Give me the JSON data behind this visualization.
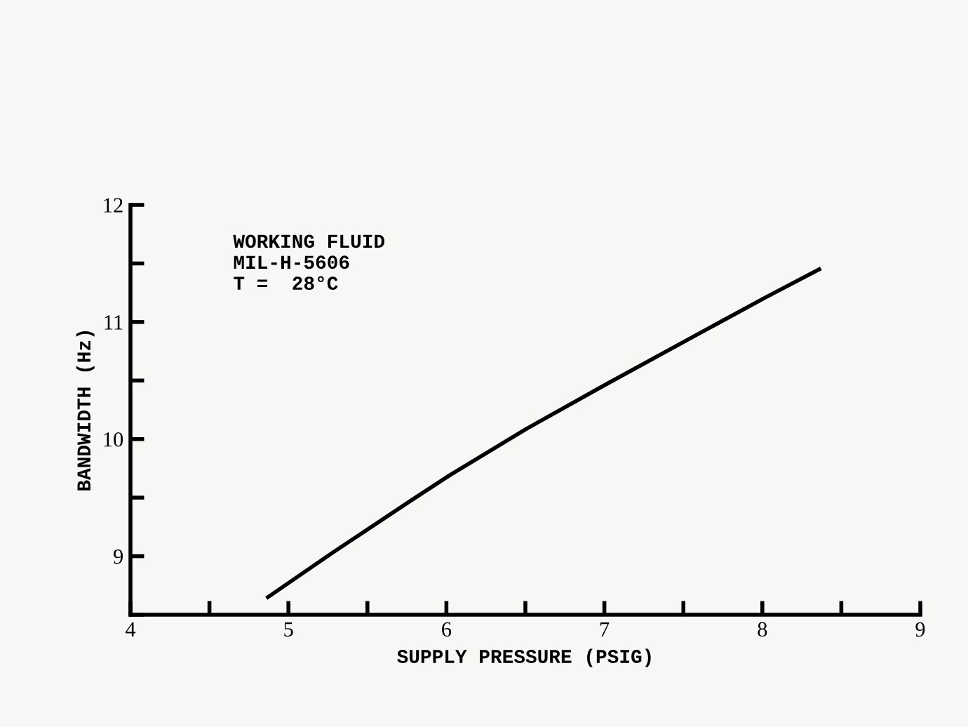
{
  "chart_data": {
    "type": "line",
    "xlabel": "SUPPLY PRESSURE (PSIG)",
    "ylabel": "BANDWIDTH (Hz)",
    "annotations": [
      "WORKING FLUID\nMIL-H-5606\nT =  28°C"
    ],
    "series": [
      {
        "color": "#000000",
        "x": [
          4.87,
          5.28,
          5.77,
          6.02,
          6.51,
          7.0,
          7.57,
          8.02,
          8.36
        ],
        "values": [
          8.65,
          9.03,
          9.47,
          9.69,
          10.09,
          10.46,
          10.88,
          11.21,
          11.45
        ]
      }
    ],
    "xlim": [
      4,
      9
    ],
    "ylim": [
      8.5,
      12
    ],
    "xticks": [
      4,
      {
        "value": 4.5,
        "label": null
      },
      5,
      {
        "value": 5.5,
        "label": null
      },
      6,
      {
        "value": 6.5,
        "label": null
      },
      7,
      {
        "value": 7.5,
        "label": null
      },
      8,
      {
        "value": 8.5,
        "label": null
      },
      9
    ],
    "yticks": [
      {
        "value": 8.5,
        "label": null
      },
      9,
      {
        "value": 9.5,
        "label": null
      },
      10,
      {
        "value": 10.5,
        "label": null
      },
      11,
      {
        "value": 11.5,
        "label": null
      },
      12
    ],
    "grid": false,
    "marker": "none",
    "line_style": "solid"
  }
}
